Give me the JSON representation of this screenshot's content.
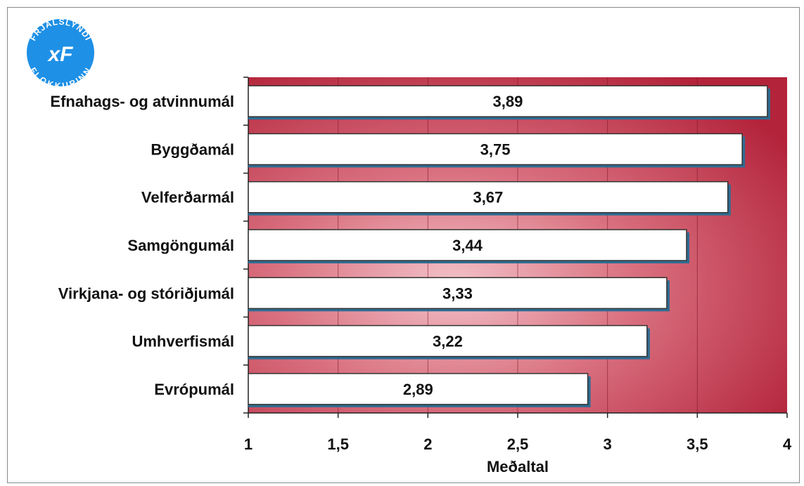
{
  "logo": {
    "text_top": "FRJÁLSLYNDI",
    "text_bottom": "FLOKKURINN",
    "mark": "xF",
    "color": "#1e90e6"
  },
  "chart_data": {
    "type": "bar",
    "orientation": "horizontal",
    "categories": [
      "Efnahags- og atvinnumál",
      "Byggðamál",
      "Velferðarmál",
      "Samgöngumál",
      "Virkjana- og stóriðjumál",
      "Umhverfismál",
      "Evrópumál"
    ],
    "values": [
      3.89,
      3.75,
      3.67,
      3.44,
      3.33,
      3.22,
      2.89
    ],
    "value_labels": [
      "3,89",
      "3,75",
      "3,67",
      "3,44",
      "3,33",
      "3,22",
      "2,89"
    ],
    "xlabel": "Meðaltal",
    "xlim": [
      1,
      4
    ],
    "xticks": [
      1,
      1.5,
      2,
      2.5,
      3,
      3.5,
      4
    ],
    "xtick_labels": [
      "1",
      "1,5",
      "2",
      "2,5",
      "3",
      "3,5",
      "4"
    ],
    "grid": "vertical",
    "legend": "none",
    "colors": {
      "plot_background": "#b3233a",
      "plot_highlight": "#f3c2c9",
      "bar_fill": "#ffffff",
      "bar_shadow": "#2e6c92"
    }
  }
}
